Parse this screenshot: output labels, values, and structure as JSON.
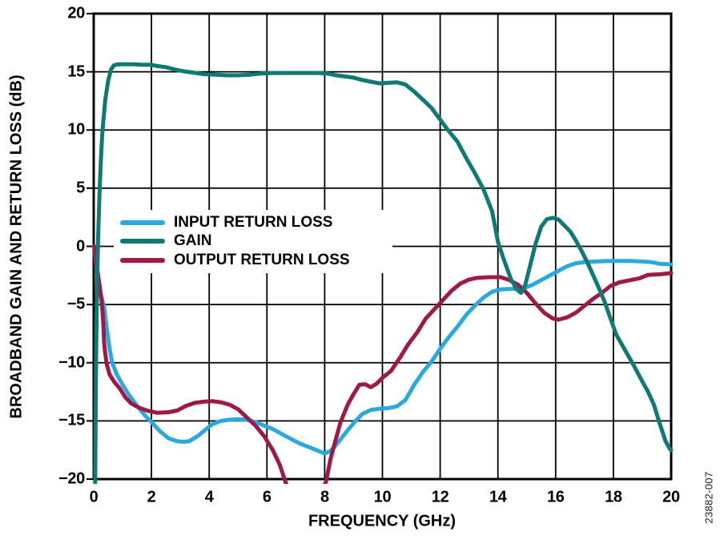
{
  "figure_number": "23882-007",
  "colors": {
    "input_return_loss": "#29A9E0",
    "gain": "#0E7A72",
    "output_return_loss": "#9E1848",
    "grid": "#000000",
    "background": "#ffffff",
    "text": "#000000"
  },
  "legend": {
    "items": [
      {
        "label": "INPUT RETURN LOSS",
        "color": "#29A9E0"
      },
      {
        "label": "GAIN",
        "color": "#0E7A72"
      },
      {
        "label": "OUTPUT RETURN LOSS",
        "color": "#9E1848"
      }
    ]
  },
  "chart_data": {
    "type": "line",
    "title": "",
    "xlabel": "FREQUENCY (GHz)",
    "ylabel": "BROADBAND GAIN AND RETURN LOSS (dB)",
    "xlim": [
      0,
      20
    ],
    "ylim": [
      -20,
      20
    ],
    "grid": true,
    "legend_position": "inside-middle-left",
    "x_ticks": [
      0,
      2,
      4,
      6,
      8,
      10,
      12,
      14,
      16,
      18,
      20
    ],
    "x_tick_labels": [
      "0",
      "2",
      "4",
      "6",
      "8",
      "10",
      "12",
      "14",
      "16",
      "18",
      "20"
    ],
    "y_ticks": [
      20,
      15,
      10,
      5,
      0,
      -5,
      -10,
      -15,
      -20
    ],
    "y_tick_labels": [
      "20",
      "15",
      "10",
      "5",
      "0",
      "−5",
      "−10",
      "−15",
      "−20"
    ],
    "series": [
      {
        "name": "INPUT RETURN LOSS",
        "color": "#29A9E0",
        "points": [
          [
            0.02,
            0
          ],
          [
            0.08,
            -1.5
          ],
          [
            0.15,
            -3.0
          ],
          [
            0.25,
            -4.2
          ],
          [
            0.36,
            -5.2
          ],
          [
            0.45,
            -7.0
          ],
          [
            0.55,
            -8.8
          ],
          [
            0.64,
            -10.0
          ],
          [
            0.8,
            -11.0
          ],
          [
            1.0,
            -11.9
          ],
          [
            1.2,
            -12.7
          ],
          [
            1.5,
            -13.7
          ],
          [
            1.8,
            -14.6
          ],
          [
            2.0,
            -15.1
          ],
          [
            2.3,
            -15.9
          ],
          [
            2.6,
            -16.5
          ],
          [
            2.9,
            -16.75
          ],
          [
            3.1,
            -16.8
          ],
          [
            3.3,
            -16.75
          ],
          [
            3.6,
            -16.3
          ],
          [
            3.9,
            -15.7
          ],
          [
            4.1,
            -15.3
          ],
          [
            4.4,
            -15.0
          ],
          [
            4.7,
            -14.9
          ],
          [
            5.0,
            -14.85
          ],
          [
            5.3,
            -14.9
          ],
          [
            5.6,
            -15.1
          ],
          [
            5.9,
            -15.4
          ],
          [
            6.2,
            -15.7
          ],
          [
            6.5,
            -16.1
          ],
          [
            6.8,
            -16.5
          ],
          [
            7.1,
            -16.9
          ],
          [
            7.4,
            -17.2
          ],
          [
            7.7,
            -17.5
          ],
          [
            8.0,
            -17.8
          ],
          [
            8.2,
            -17.6
          ],
          [
            8.45,
            -16.9
          ],
          [
            8.7,
            -16.1
          ],
          [
            9.0,
            -15.2
          ],
          [
            9.3,
            -14.4
          ],
          [
            9.6,
            -14.05
          ],
          [
            9.9,
            -13.95
          ],
          [
            10.2,
            -13.9
          ],
          [
            10.5,
            -13.75
          ],
          [
            10.8,
            -13.2
          ],
          [
            11.1,
            -11.9
          ],
          [
            11.4,
            -10.8
          ],
          [
            11.7,
            -9.9
          ],
          [
            12.0,
            -8.8
          ],
          [
            12.3,
            -7.8
          ],
          [
            12.6,
            -6.9
          ],
          [
            12.9,
            -5.9
          ],
          [
            13.2,
            -5.1
          ],
          [
            13.5,
            -4.4
          ],
          [
            13.8,
            -3.9
          ],
          [
            14.1,
            -3.7
          ],
          [
            14.5,
            -3.65
          ],
          [
            14.9,
            -3.6
          ],
          [
            15.2,
            -3.3
          ],
          [
            15.5,
            -2.9
          ],
          [
            15.8,
            -2.5
          ],
          [
            16.1,
            -2.1
          ],
          [
            16.4,
            -1.7
          ],
          [
            16.7,
            -1.45
          ],
          [
            17.0,
            -1.35
          ],
          [
            17.4,
            -1.3
          ],
          [
            17.8,
            -1.25
          ],
          [
            18.2,
            -1.25
          ],
          [
            18.6,
            -1.25
          ],
          [
            19.0,
            -1.3
          ],
          [
            19.3,
            -1.35
          ],
          [
            19.6,
            -1.5
          ],
          [
            20.0,
            -1.55
          ]
        ]
      },
      {
        "name": "GAIN",
        "color": "#0E7A72",
        "points": [
          [
            0.05,
            -20.5
          ],
          [
            0.07,
            -14.0
          ],
          [
            0.09,
            -8.0
          ],
          [
            0.12,
            -3.0
          ],
          [
            0.15,
            0.5
          ],
          [
            0.2,
            4.5
          ],
          [
            0.25,
            7.5
          ],
          [
            0.3,
            9.8
          ],
          [
            0.4,
            12.6
          ],
          [
            0.5,
            14.2
          ],
          [
            0.6,
            15.2
          ],
          [
            0.7,
            15.55
          ],
          [
            0.85,
            15.65
          ],
          [
            1.1,
            15.65
          ],
          [
            1.4,
            15.65
          ],
          [
            1.7,
            15.6
          ],
          [
            2.0,
            15.6
          ],
          [
            2.2,
            15.5
          ],
          [
            2.5,
            15.4
          ],
          [
            2.8,
            15.2
          ],
          [
            3.1,
            15.05
          ],
          [
            3.4,
            14.95
          ],
          [
            3.8,
            14.8
          ],
          [
            4.2,
            14.75
          ],
          [
            4.6,
            14.7
          ],
          [
            5.0,
            14.7
          ],
          [
            5.4,
            14.75
          ],
          [
            5.8,
            14.85
          ],
          [
            6.2,
            14.9
          ],
          [
            6.6,
            14.9
          ],
          [
            7.0,
            14.9
          ],
          [
            7.4,
            14.9
          ],
          [
            7.8,
            14.9
          ],
          [
            8.1,
            14.85
          ],
          [
            8.4,
            14.7
          ],
          [
            8.7,
            14.6
          ],
          [
            9.0,
            14.5
          ],
          [
            9.3,
            14.3
          ],
          [
            9.6,
            14.15
          ],
          [
            9.9,
            14.0
          ],
          [
            10.2,
            14.05
          ],
          [
            10.5,
            14.1
          ],
          [
            10.8,
            13.9
          ],
          [
            11.1,
            13.3
          ],
          [
            11.4,
            12.6
          ],
          [
            11.7,
            11.9
          ],
          [
            12.0,
            10.9
          ],
          [
            12.3,
            9.9
          ],
          [
            12.6,
            9.0
          ],
          [
            12.9,
            7.6
          ],
          [
            13.2,
            6.3
          ],
          [
            13.5,
            4.9
          ],
          [
            13.8,
            3.0
          ],
          [
            14.0,
            0.4
          ],
          [
            14.2,
            -1.1
          ],
          [
            14.45,
            -2.8
          ],
          [
            14.65,
            -3.7
          ],
          [
            14.8,
            -4.0
          ],
          [
            14.95,
            -3.3
          ],
          [
            15.1,
            -1.8
          ],
          [
            15.3,
            0.2
          ],
          [
            15.5,
            1.7
          ],
          [
            15.7,
            2.35
          ],
          [
            15.9,
            2.45
          ],
          [
            16.1,
            2.3
          ],
          [
            16.3,
            1.8
          ],
          [
            16.5,
            1.3
          ],
          [
            16.7,
            0.5
          ],
          [
            16.9,
            -0.4
          ],
          [
            17.1,
            -1.4
          ],
          [
            17.3,
            -2.5
          ],
          [
            17.5,
            -3.6
          ],
          [
            17.7,
            -4.8
          ],
          [
            17.9,
            -6.2
          ],
          [
            18.1,
            -7.6
          ],
          [
            18.4,
            -8.9
          ],
          [
            18.7,
            -10.2
          ],
          [
            19.0,
            -11.6
          ],
          [
            19.2,
            -12.5
          ],
          [
            19.4,
            -13.6
          ],
          [
            19.6,
            -15.2
          ],
          [
            19.8,
            -16.7
          ],
          [
            19.95,
            -17.4
          ],
          [
            20.0,
            -17.5
          ]
        ]
      },
      {
        "name": "OUTPUT RETURN LOSS",
        "color": "#9E1848",
        "points": [
          [
            0.02,
            0
          ],
          [
            0.1,
            -1.6
          ],
          [
            0.2,
            -3.3
          ],
          [
            0.28,
            -4.8
          ],
          [
            0.33,
            -6.5
          ],
          [
            0.36,
            -8.3
          ],
          [
            0.4,
            -9.2
          ],
          [
            0.45,
            -10.1
          ],
          [
            0.55,
            -11.0
          ],
          [
            0.7,
            -11.6
          ],
          [
            0.9,
            -12.2
          ],
          [
            1.1,
            -13.0
          ],
          [
            1.3,
            -13.5
          ],
          [
            1.6,
            -13.9
          ],
          [
            1.9,
            -14.15
          ],
          [
            2.2,
            -14.3
          ],
          [
            2.6,
            -14.25
          ],
          [
            2.9,
            -14.1
          ],
          [
            3.2,
            -13.7
          ],
          [
            3.5,
            -13.45
          ],
          [
            3.8,
            -13.35
          ],
          [
            4.1,
            -13.3
          ],
          [
            4.4,
            -13.4
          ],
          [
            4.7,
            -13.6
          ],
          [
            5.0,
            -14.0
          ],
          [
            5.3,
            -14.7
          ],
          [
            5.6,
            -15.4
          ],
          [
            5.9,
            -16.3
          ],
          [
            6.2,
            -17.5
          ],
          [
            6.45,
            -18.8
          ],
          [
            6.65,
            -20.3
          ],
          [
            6.9,
            -21.5
          ],
          [
            7.8,
            -21.5
          ],
          [
            8.05,
            -20.2
          ],
          [
            8.2,
            -18.3
          ],
          [
            8.35,
            -16.9
          ],
          [
            8.55,
            -15.1
          ],
          [
            8.8,
            -13.6
          ],
          [
            9.0,
            -12.7
          ],
          [
            9.2,
            -11.9
          ],
          [
            9.4,
            -11.85
          ],
          [
            9.6,
            -12.1
          ],
          [
            9.8,
            -11.8
          ],
          [
            10.0,
            -11.3
          ],
          [
            10.3,
            -10.7
          ],
          [
            10.6,
            -9.6
          ],
          [
            10.9,
            -8.4
          ],
          [
            11.2,
            -7.4
          ],
          [
            11.5,
            -6.2
          ],
          [
            11.8,
            -5.4
          ],
          [
            12.1,
            -4.6
          ],
          [
            12.4,
            -3.8
          ],
          [
            12.7,
            -3.2
          ],
          [
            13.0,
            -2.85
          ],
          [
            13.3,
            -2.7
          ],
          [
            13.7,
            -2.65
          ],
          [
            14.1,
            -2.65
          ],
          [
            14.4,
            -2.9
          ],
          [
            14.7,
            -3.3
          ],
          [
            15.0,
            -4.0
          ],
          [
            15.3,
            -4.9
          ],
          [
            15.6,
            -5.7
          ],
          [
            15.9,
            -6.2
          ],
          [
            16.1,
            -6.3
          ],
          [
            16.4,
            -6.1
          ],
          [
            16.7,
            -5.7
          ],
          [
            17.0,
            -5.1
          ],
          [
            17.3,
            -4.5
          ],
          [
            17.6,
            -4.0
          ],
          [
            17.9,
            -3.4
          ],
          [
            18.2,
            -3.1
          ],
          [
            18.6,
            -2.9
          ],
          [
            18.9,
            -2.75
          ],
          [
            19.2,
            -2.45
          ],
          [
            19.6,
            -2.4
          ],
          [
            20.0,
            -2.3
          ]
        ]
      }
    ]
  }
}
